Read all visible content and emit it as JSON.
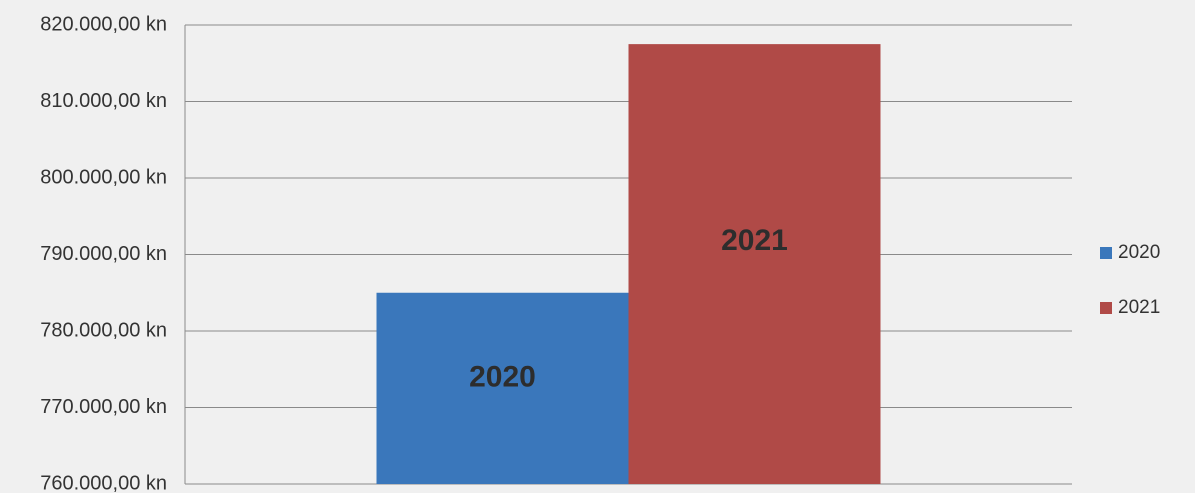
{
  "chart_data": {
    "type": "bar",
    "categories": [
      null
    ],
    "series": [
      {
        "name": "2020",
        "color": "#3a77bb",
        "values": [
          785000
        ]
      },
      {
        "name": "2021",
        "color": "#b04a47",
        "values": [
          817500
        ]
      }
    ],
    "ylim": [
      760000,
      820000
    ],
    "yticks": [
      {
        "value": 760000,
        "label": "760.000,00 kn"
      },
      {
        "value": 770000,
        "label": "770.000,00 kn"
      },
      {
        "value": 780000,
        "label": "780.000,00 kn"
      },
      {
        "value": 790000,
        "label": "790.000,00 kn"
      },
      {
        "value": 800000,
        "label": "800.000,00 kn"
      },
      {
        "value": 810000,
        "label": "810.000,00 kn"
      },
      {
        "value": 820000,
        "label": "820.000,00 kn"
      }
    ],
    "grid": true,
    "legend": "right"
  }
}
